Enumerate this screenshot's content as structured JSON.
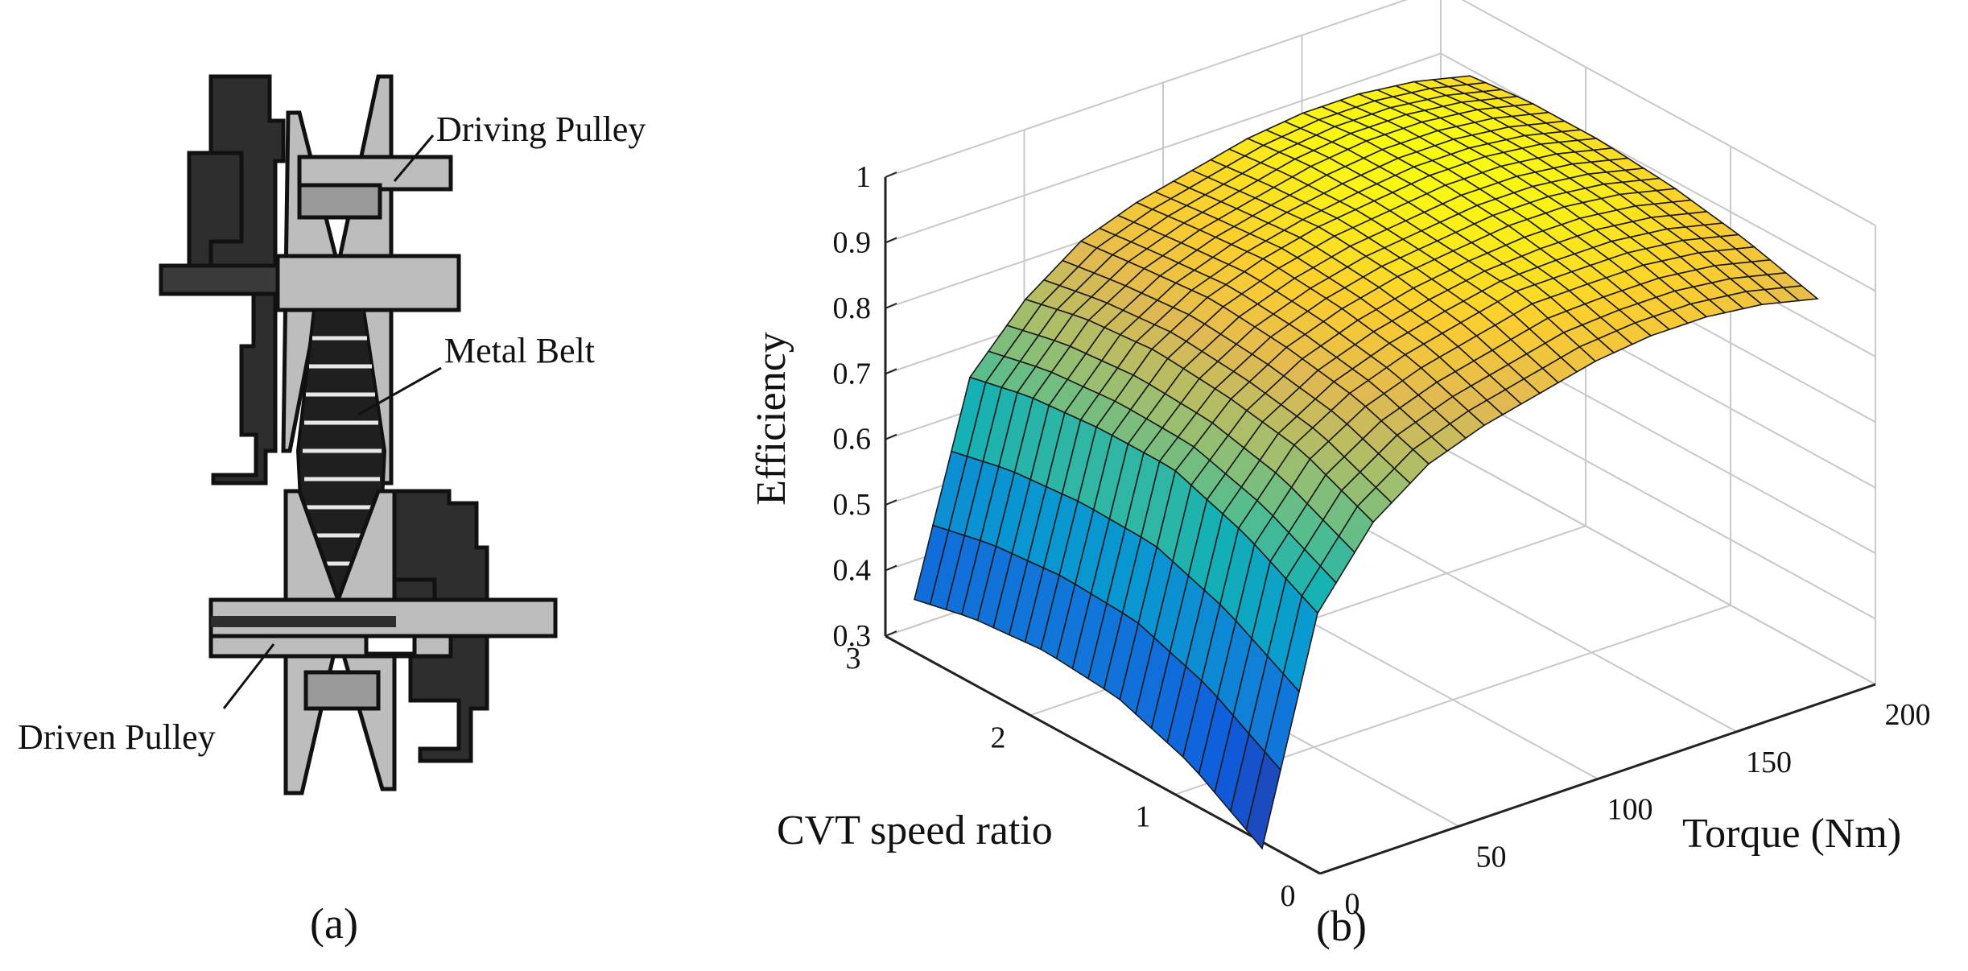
{
  "panel_a": {
    "caption": "(a)",
    "labels": {
      "driving_pulley": "Driving Pulley",
      "metal_belt": "Metal Belt",
      "driven_pulley": "Driven Pulley"
    }
  },
  "panel_b": {
    "caption": "(b)",
    "colors": {
      "low": "#3b2f9e",
      "mid": "#2fb0b8",
      "high": "#f7e62a",
      "top": "#f2b84a",
      "edge": "#1a1a1a"
    }
  },
  "chart_data": {
    "type": "surface",
    "zlabel": "Efficiency",
    "ylabel": "CVT speed ratio",
    "xlabel": "Torque (Nm)",
    "x_ticks": [
      "0",
      "50",
      "100",
      "150",
      "200"
    ],
    "y_ticks": [
      "0",
      "1",
      "2",
      "3"
    ],
    "z_ticks": [
      "0.3",
      "0.4",
      "0.5",
      "0.6",
      "0.7",
      "0.8",
      "0.9",
      "1"
    ],
    "xlim": [
      0,
      200
    ],
    "ylim": [
      0,
      3
    ],
    "zlim": [
      0.3,
      1
    ],
    "torque_nm": [
      0,
      20,
      40,
      60,
      80,
      100,
      120,
      140,
      160,
      180,
      200
    ],
    "speed_ratio": [
      0.4,
      0.9,
      1.4,
      1.9,
      2.4,
      2.8
    ],
    "efficiency": [
      [
        0.29,
        0.62,
        0.73,
        0.79,
        0.82,
        0.84,
        0.86,
        0.87,
        0.87,
        0.86,
        0.84
      ],
      [
        0.36,
        0.68,
        0.78,
        0.83,
        0.86,
        0.88,
        0.9,
        0.9,
        0.9,
        0.89,
        0.87
      ],
      [
        0.4,
        0.72,
        0.8,
        0.85,
        0.88,
        0.9,
        0.91,
        0.92,
        0.92,
        0.91,
        0.89
      ],
      [
        0.41,
        0.72,
        0.81,
        0.86,
        0.89,
        0.91,
        0.92,
        0.93,
        0.93,
        0.92,
        0.9
      ],
      [
        0.4,
        0.71,
        0.8,
        0.85,
        0.88,
        0.9,
        0.92,
        0.93,
        0.93,
        0.92,
        0.9
      ],
      [
        0.38,
        0.69,
        0.78,
        0.84,
        0.87,
        0.89,
        0.91,
        0.92,
        0.92,
        0.91,
        0.89
      ]
    ]
  }
}
